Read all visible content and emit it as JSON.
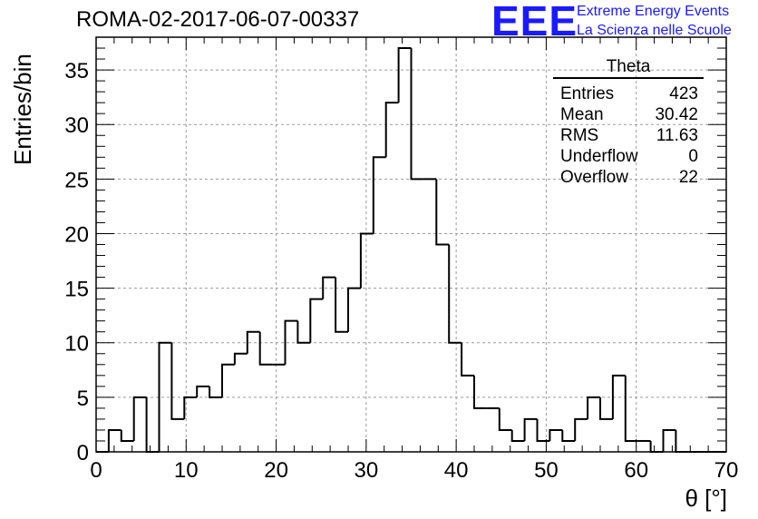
{
  "title": "ROMA-02-2017-06-07-00337",
  "logo": {
    "mark": "EEE",
    "line1": "Extreme Energy Events",
    "line2": "La Scienza nelle Scuole",
    "color": "#1a1aff"
  },
  "stats": {
    "name": "Theta",
    "rows": [
      {
        "label": "Entries",
        "value": "423"
      },
      {
        "label": "Mean",
        "value": "30.42"
      },
      {
        "label": "RMS",
        "value": "11.63"
      },
      {
        "label": "Underflow",
        "value": "0"
      },
      {
        "label": "Overflow",
        "value": "22"
      }
    ]
  },
  "chart_data": {
    "type": "histogram",
    "xlabel": "θ [°]",
    "ylabel": "Entries/bin",
    "xlim": [
      0,
      70
    ],
    "ylim": [
      0,
      38
    ],
    "grid": true,
    "bin_width": 1.4,
    "bin_start": 0,
    "values": [
      0,
      2,
      1,
      5,
      0,
      10,
      3,
      5,
      6,
      5,
      8,
      9,
      11,
      8,
      8,
      12,
      10,
      14,
      16,
      11,
      15,
      20,
      27,
      32,
      37,
      25,
      25,
      19,
      10,
      7,
      4,
      4,
      2,
      1,
      3,
      1,
      2,
      1,
      3,
      5,
      3,
      7,
      1,
      1,
      0,
      2,
      0,
      0,
      0,
      0
    ],
    "x_ticks": [
      "0",
      "10",
      "20",
      "30",
      "40",
      "50",
      "60",
      "70"
    ],
    "y_ticks": [
      "0",
      "5",
      "10",
      "15",
      "20",
      "25",
      "30",
      "35"
    ]
  }
}
